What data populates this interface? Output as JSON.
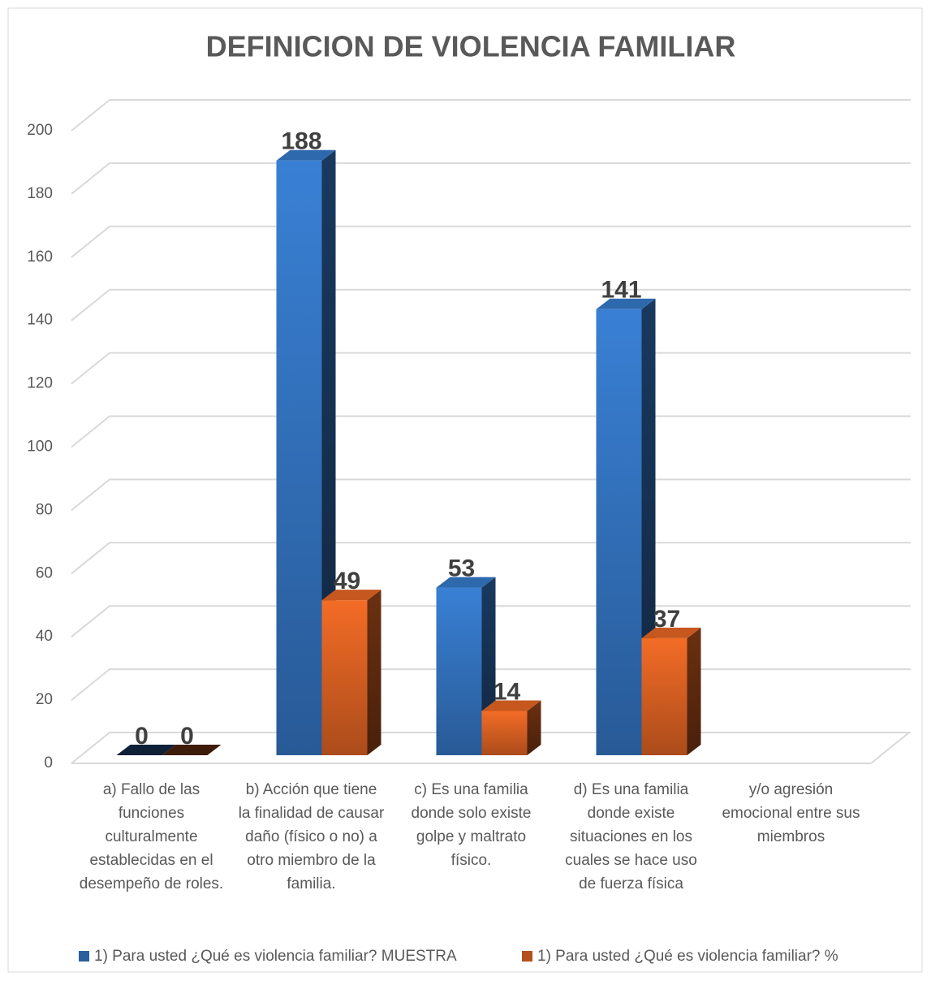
{
  "chart_data": {
    "type": "bar3d",
    "title": "DEFINICION DE VIOLENCIA FAMILIAR",
    "categories": [
      "a) Fallo de las funciones culturalmente establecidas en el desempeño de roles.",
      "b) Acción que tiene la finalidad de causar daño (físico o no) a otro miembro de la familia.",
      "c) Es una familia donde solo existe golpe y maltrato físico.",
      "d) Es una familia donde existe situaciones en los cuales se hace uso de fuerza física",
      "y/o agresión emocional entre sus miembros"
    ],
    "series": [
      {
        "name": "1) Para usted ¿Qué es violencia familiar? MUESTRA",
        "color": "#2a5f9e",
        "values": [
          0,
          188,
          53,
          141,
          null
        ]
      },
      {
        "name": "1) Para usted ¿Qué es violencia familiar? %",
        "color": "#b4501c",
        "values": [
          0,
          49,
          14,
          37,
          null
        ]
      }
    ],
    "ylim": [
      0,
      200
    ],
    "yticks": [
      0,
      20,
      40,
      60,
      80,
      100,
      120,
      140,
      160,
      180,
      200
    ],
    "grid": true,
    "legend": "bottom"
  }
}
